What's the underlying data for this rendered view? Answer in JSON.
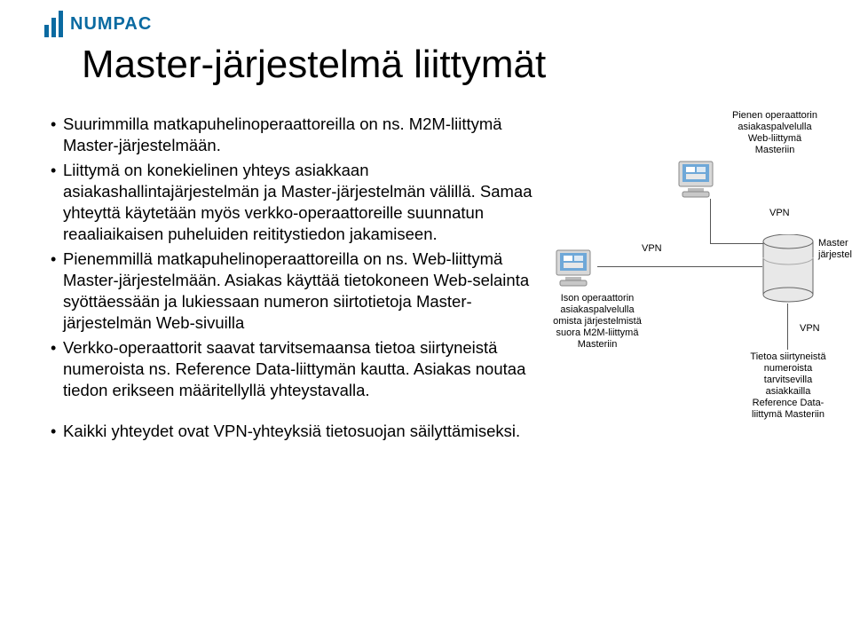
{
  "logo_text": "NUMPAC",
  "title": "Master-järjestelmä liittymät",
  "bullets": [
    "Suurimmilla matkapuhelinoperaattoreilla on ns. M2M-liittymä Master-järjestelmään.",
    "Liittymä on konekielinen yhteys asiakkaan asiakashallintajärjestelmän ja Master-järjestelmän välillä. Samaa yhteyttä käytetään myös verkko-operaattoreille suunnatun reaaliaikaisen puheluiden reititystiedon jakamiseen.",
    "Pienemmillä matkapuhelinoperaattoreilla on ns. Web-liittymä Master-järjestelmään. Asiakas käyttää tietokoneen Web-selainta syöttäessään ja lukiessaan numeron siirtotietoja Master-järjestelmän Web-sivuilla",
    "Verkko-operaattorit saavat tarvitsemaansa tietoa siirtyneistä numeroista ns. Reference Data-liittymän kautta. Asiakas noutaa tiedon erikseen määritellyllä yhteystavalla.",
    "Kaikki yhteydet ovat VPN-yhteyksiä tietosuojan säilyttämiseksi."
  ],
  "diagram": {
    "caption_top": "Pienen operaattorin\nasiakaspalvelulla\nWeb-liittymä\nMasteriin",
    "caption_left": "Ison operaattorin\nasiakaspalvelulla\nomista järjestelmistä\nsuora M2M-liittymä\nMasteriin",
    "caption_master": "Master\njärjestelmä",
    "caption_bottom": "Tietoa siirtyneistä\nnumeroista\ntarvitsevilla\nasiakkailla\nReference Data-\nliittymä Masteriin",
    "vpn": "VPN"
  },
  "style": {
    "text_color": "#000000",
    "logo_color": "#0a6aa1",
    "background": "#ffffff",
    "title_fontsize": 44,
    "body_fontsize": 18.5,
    "caption_fontsize": 11,
    "line_color": "#555555"
  }
}
